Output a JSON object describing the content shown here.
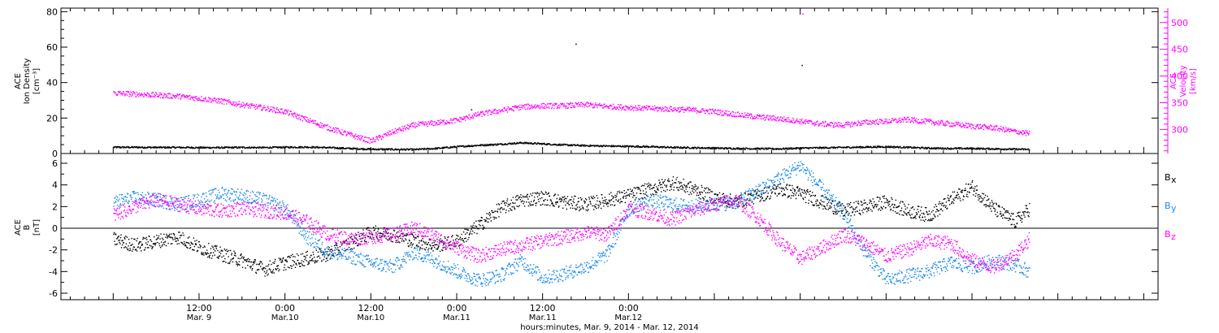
{
  "chart_data": [
    {
      "type": "scatter",
      "panel": "top",
      "ylabel": [
        "ACE",
        "Ion Density",
        "[cm⁻³]"
      ],
      "ylim": [
        0,
        82
      ],
      "yticks": [
        0,
        20,
        40,
        60,
        80
      ],
      "y2label": [
        "ACE",
        "Velocity",
        "[km/s]"
      ],
      "y2lim": [
        255,
        527
      ],
      "y2ticks": [
        300,
        350,
        400,
        450,
        500
      ],
      "series": [
        {
          "key": "density",
          "color": "#000000",
          "axis": "left",
          "x": [
            0,
            3,
            6,
            9,
            12,
            15,
            18,
            21,
            24,
            27,
            30,
            33,
            36,
            39,
            42,
            45,
            48,
            51,
            54,
            57,
            60,
            63,
            66,
            69,
            72,
            75,
            78,
            81,
            84,
            87,
            90,
            93,
            96,
            99,
            102,
            105,
            108,
            111,
            114,
            117,
            120,
            123,
            126,
            128
          ],
          "y": [
            3.5,
            3.5,
            3.4,
            3.4,
            3.3,
            3.3,
            3.4,
            3.3,
            3.5,
            3.6,
            3.3,
            2.8,
            2.4,
            2.3,
            2.2,
            2.8,
            3.8,
            4.6,
            5.2,
            6.0,
            5.4,
            4.8,
            4.4,
            4.2,
            4.0,
            3.8,
            3.4,
            3.2,
            3.0,
            2.8,
            2.7,
            2.6,
            3.0,
            3.2,
            3.4,
            3.6,
            3.8,
            3.4,
            3.0,
            2.8,
            2.8,
            2.6,
            2.4,
            2.3
          ]
        },
        {
          "key": "velocity",
          "color": "#ff00ff",
          "axis": "right",
          "x": [
            0,
            3,
            6,
            9,
            12,
            15,
            18,
            21,
            24,
            27,
            30,
            33,
            36,
            39,
            42,
            45,
            48,
            51,
            54,
            57,
            60,
            63,
            66,
            69,
            72,
            75,
            78,
            81,
            84,
            87,
            90,
            93,
            96,
            99,
            102,
            105,
            108,
            111,
            114,
            117,
            120,
            123,
            126,
            128
          ],
          "y": [
            368,
            366,
            364,
            362,
            358,
            353,
            346,
            340,
            333,
            318,
            303,
            290,
            278,
            295,
            308,
            312,
            317,
            328,
            335,
            342,
            344,
            344,
            346,
            343,
            341,
            339,
            338,
            336,
            333,
            328,
            323,
            320,
            315,
            310,
            308,
            313,
            315,
            318,
            314,
            310,
            306,
            303,
            296,
            292
          ]
        }
      ],
      "isolated_points": [
        {
          "x": 64.6,
          "y": 62,
          "color": "#000000",
          "axis": "left"
        },
        {
          "x": 96.2,
          "y": 50,
          "color": "#000000",
          "axis": "left"
        },
        {
          "x": 50.0,
          "y": 25,
          "color": "#000000",
          "axis": "left"
        },
        {
          "x": 96.3,
          "y": 517,
          "color": "#ff00ff",
          "axis": "right"
        }
      ]
    },
    {
      "type": "scatter",
      "panel": "bottom",
      "ylabel": [
        "ACE",
        "B",
        "[nT]"
      ],
      "ylim": [
        -6.6,
        6.9
      ],
      "yticks": [
        -6,
        -4,
        -2,
        0,
        2,
        4,
        6
      ],
      "zero_line": true,
      "series": [
        {
          "key": "Bx",
          "name": "Bx",
          "color": "#000000",
          "x": [
            0,
            3,
            6,
            9,
            12,
            15,
            18,
            21,
            24,
            27,
            30,
            33,
            36,
            39,
            42,
            45,
            48,
            51,
            54,
            57,
            60,
            63,
            66,
            69,
            72,
            75,
            78,
            81,
            84,
            87,
            90,
            93,
            96,
            99,
            102,
            105,
            108,
            111,
            114,
            117,
            120,
            123,
            126,
            128
          ],
          "y": [
            -1.0,
            -1.6,
            -1.2,
            -0.8,
            -1.8,
            -2.4,
            -3.0,
            -3.8,
            -3.2,
            -2.8,
            -2.4,
            -1.4,
            -0.4,
            -0.6,
            -1.2,
            -1.6,
            -1.2,
            0.2,
            1.8,
            2.6,
            2.8,
            2.4,
            2.2,
            2.6,
            3.0,
            3.6,
            4.2,
            3.6,
            2.8,
            2.4,
            3.0,
            3.6,
            3.2,
            2.4,
            1.6,
            2.0,
            2.4,
            1.6,
            1.2,
            2.6,
            3.8,
            1.8,
            0.6,
            1.8
          ]
        },
        {
          "key": "By",
          "name": "By",
          "color": "#1a8ae6",
          "x": [
            0,
            3,
            6,
            9,
            12,
            15,
            18,
            21,
            24,
            27,
            30,
            33,
            36,
            39,
            42,
            45,
            48,
            51,
            54,
            57,
            60,
            63,
            66,
            69,
            72,
            75,
            78,
            81,
            84,
            87,
            90,
            93,
            96,
            99,
            102,
            105,
            108,
            111,
            114,
            117,
            120,
            123,
            126,
            128
          ],
          "y": [
            2.4,
            2.8,
            2.6,
            2.2,
            2.6,
            3.2,
            3.0,
            2.6,
            1.8,
            -0.8,
            -2.2,
            -2.6,
            -3.2,
            -3.6,
            -2.2,
            -3.0,
            -4.0,
            -4.8,
            -4.4,
            -3.0,
            -4.6,
            -4.2,
            -3.6,
            -2.4,
            1.8,
            2.6,
            2.2,
            2.0,
            2.2,
            2.4,
            3.4,
            4.6,
            5.8,
            3.6,
            1.4,
            -2.2,
            -4.8,
            -4.4,
            -4.0,
            -3.2,
            -3.6,
            -3.0,
            -3.4,
            -4.0
          ]
        },
        {
          "key": "Bz",
          "name": "Bz",
          "color": "#ff00ff",
          "x": [
            0,
            3,
            6,
            9,
            12,
            15,
            18,
            21,
            24,
            27,
            30,
            33,
            36,
            39,
            42,
            45,
            48,
            51,
            54,
            57,
            60,
            63,
            66,
            69,
            72,
            75,
            78,
            81,
            84,
            87,
            90,
            93,
            96,
            99,
            102,
            105,
            108,
            111,
            114,
            117,
            120,
            123,
            126,
            128
          ],
          "y": [
            1.2,
            2.0,
            2.6,
            2.2,
            1.8,
            1.6,
            1.8,
            1.6,
            1.4,
            0.6,
            -0.6,
            -1.0,
            -0.8,
            -0.6,
            0.0,
            -0.8,
            -1.8,
            -2.6,
            -2.0,
            -1.6,
            -1.2,
            -0.8,
            -0.4,
            -0.6,
            1.8,
            1.4,
            0.8,
            1.6,
            2.2,
            2.6,
            1.0,
            -1.2,
            -2.8,
            -1.8,
            -0.6,
            -1.4,
            -2.6,
            -2.0,
            -1.2,
            -1.4,
            -3.0,
            -3.6,
            -2.4,
            -1.0
          ]
        }
      ],
      "legend_entries": [
        {
          "main": "B",
          "sub": "x",
          "color": "#000000"
        },
        {
          "main": "B",
          "sub": "y",
          "color": "#1a8ae6"
        },
        {
          "main": "B",
          "sub": "z",
          "color": "#ff00ff"
        }
      ]
    }
  ],
  "x_axis": {
    "xlim": [
      -7.3,
      146
    ],
    "x_units": "hours from 0:00 Mar. 9, 2014",
    "ticks": [
      {
        "x": 12,
        "time": "12:00",
        "date": "Mar. 9"
      },
      {
        "x": 24,
        "time": "0:00",
        "date": "Mar.10"
      },
      {
        "x": 36,
        "time": "12:00",
        "date": "Mar.10"
      },
      {
        "x": 48,
        "time": "0:00",
        "date": "Mar.11"
      },
      {
        "x": 60,
        "time": "12:00",
        "date": "Mar.11"
      },
      {
        "x": 72,
        "time": "0:00",
        "date": "Mar.12"
      }
    ],
    "xlabel": "hours:minutes, Mar.  9, 2014 - Mar. 12, 2014"
  }
}
